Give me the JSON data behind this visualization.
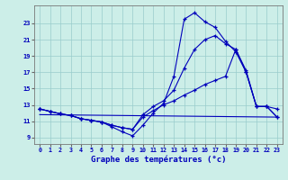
{
  "bg_color": "#cceee8",
  "line_color": "#0000bb",
  "grid_color": "#99cccc",
  "xlabel": "Graphe des températures (°c)",
  "x_ticks": [
    0,
    1,
    2,
    3,
    4,
    5,
    6,
    7,
    8,
    9,
    10,
    11,
    12,
    13,
    14,
    15,
    16,
    17,
    18,
    19,
    20,
    21,
    22,
    23
  ],
  "y_ticks": [
    9,
    11,
    13,
    15,
    17,
    19,
    21,
    23
  ],
  "ylim": [
    8.2,
    25.2
  ],
  "xlim": [
    -0.5,
    23.5
  ],
  "curve1_x": [
    0,
    1,
    2,
    3,
    4,
    5,
    6,
    7,
    8,
    9,
    10,
    11,
    12,
    13,
    14,
    15,
    16,
    17,
    18,
    19,
    20,
    21,
    22,
    23
  ],
  "curve1_y": [
    12.5,
    12.2,
    11.9,
    11.7,
    11.3,
    11.1,
    10.9,
    10.3,
    9.7,
    9.2,
    10.5,
    12.0,
    13.2,
    16.5,
    23.5,
    24.3,
    23.2,
    22.5,
    20.8,
    19.5,
    17.0,
    12.8,
    12.8,
    12.5
  ],
  "curve2_x": [
    0,
    1,
    2,
    3,
    4,
    5,
    6,
    7,
    8,
    9,
    10,
    11,
    12,
    13,
    14,
    15,
    16,
    17,
    18,
    19,
    20,
    21,
    22,
    23
  ],
  "curve2_y": [
    12.5,
    12.2,
    11.9,
    11.7,
    11.3,
    11.1,
    10.9,
    10.5,
    10.2,
    10.0,
    11.5,
    12.3,
    13.0,
    13.5,
    14.2,
    14.8,
    15.5,
    16.0,
    16.5,
    19.8,
    17.2,
    12.8,
    12.8,
    11.5
  ],
  "curve3_x": [
    0,
    23
  ],
  "curve3_y": [
    11.8,
    11.5
  ],
  "curve4_x": [
    0,
    1,
    2,
    3,
    4,
    5,
    6,
    7,
    8,
    9,
    10,
    11,
    12,
    13,
    14,
    15,
    16,
    17,
    18,
    19,
    20,
    21,
    22,
    23
  ],
  "curve4_y": [
    12.5,
    12.2,
    11.9,
    11.7,
    11.3,
    11.1,
    10.9,
    10.5,
    10.2,
    10.0,
    11.8,
    12.8,
    13.5,
    14.8,
    17.5,
    19.8,
    21.0,
    21.5,
    20.5,
    19.8,
    17.0,
    12.8,
    12.8,
    11.5
  ]
}
